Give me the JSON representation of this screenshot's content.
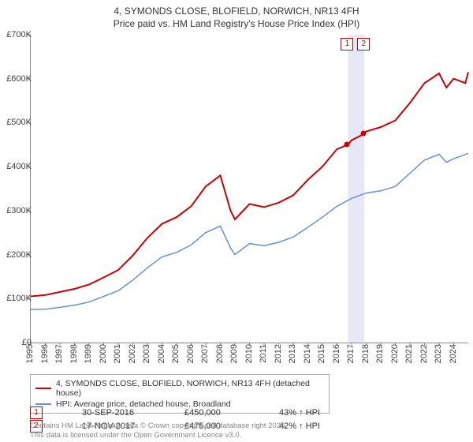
{
  "title_line1": "4, SYMONDS CLOSE, BLOFIELD, NORWICH, NR13 4FH",
  "title_line2": "Price paid vs. HM Land Registry's House Price Index (HPI)",
  "chart": {
    "type": "line",
    "background_color": "#ffffff",
    "highlight_band_color": "#e6e9f5",
    "ylim": [
      0,
      700000
    ],
    "ytick_step": 100000,
    "ytick_labels": [
      "£0",
      "£100K",
      "£200K",
      "£300K",
      "£400K",
      "£500K",
      "£600K",
      "£700K"
    ],
    "xlim": [
      1995,
      2025
    ],
    "xtick_step": 1,
    "xtick_labels": [
      "1995",
      "1996",
      "1997",
      "1998",
      "1999",
      "2000",
      "2001",
      "2002",
      "2003",
      "2004",
      "2005",
      "2006",
      "2007",
      "2008",
      "2009",
      "2010",
      "2011",
      "2012",
      "2013",
      "2014",
      "2015",
      "2016",
      "2017",
      "2018",
      "2019",
      "2020",
      "2021",
      "2022",
      "2023",
      "2024"
    ],
    "series": [
      {
        "name": "4, SYMONDS CLOSE, BLOFIELD, NORWICH, NR13 4FH (detached house)",
        "color": "#cc0000",
        "line_width": 2,
        "data": [
          [
            1995,
            105000
          ],
          [
            1996,
            108000
          ],
          [
            1997,
            115000
          ],
          [
            1998,
            122000
          ],
          [
            1999,
            132000
          ],
          [
            2000,
            148000
          ],
          [
            2001,
            165000
          ],
          [
            2002,
            198000
          ],
          [
            2003,
            238000
          ],
          [
            2004,
            270000
          ],
          [
            2005,
            285000
          ],
          [
            2006,
            310000
          ],
          [
            2007,
            355000
          ],
          [
            2008,
            380000
          ],
          [
            2008.7,
            300000
          ],
          [
            2009,
            280000
          ],
          [
            2010,
            315000
          ],
          [
            2011,
            308000
          ],
          [
            2012,
            318000
          ],
          [
            2013,
            335000
          ],
          [
            2014,
            370000
          ],
          [
            2015,
            400000
          ],
          [
            2016,
            440000
          ],
          [
            2016.75,
            450000
          ],
          [
            2017,
            460000
          ],
          [
            2017.88,
            475000
          ],
          [
            2018,
            480000
          ],
          [
            2019,
            490000
          ],
          [
            2020,
            505000
          ],
          [
            2021,
            545000
          ],
          [
            2022,
            590000
          ],
          [
            2023,
            612000
          ],
          [
            2023.5,
            580000
          ],
          [
            2024,
            600000
          ],
          [
            2024.8,
            590000
          ],
          [
            2025,
            615000
          ]
        ]
      },
      {
        "name": "HPI: Average price, detached house, Broadland",
        "color": "#6a8fd8",
        "line_width": 1.5,
        "data": [
          [
            1995,
            75000
          ],
          [
            1996,
            76000
          ],
          [
            1997,
            80000
          ],
          [
            1998,
            85000
          ],
          [
            1999,
            92000
          ],
          [
            2000,
            105000
          ],
          [
            2001,
            118000
          ],
          [
            2002,
            142000
          ],
          [
            2003,
            170000
          ],
          [
            2004,
            195000
          ],
          [
            2005,
            205000
          ],
          [
            2006,
            222000
          ],
          [
            2007,
            250000
          ],
          [
            2008,
            265000
          ],
          [
            2008.7,
            215000
          ],
          [
            2009,
            200000
          ],
          [
            2010,
            225000
          ],
          [
            2011,
            220000
          ],
          [
            2012,
            228000
          ],
          [
            2013,
            240000
          ],
          [
            2014,
            262000
          ],
          [
            2015,
            285000
          ],
          [
            2016,
            310000
          ],
          [
            2017,
            328000
          ],
          [
            2018,
            340000
          ],
          [
            2019,
            345000
          ],
          [
            2020,
            355000
          ],
          [
            2021,
            385000
          ],
          [
            2022,
            415000
          ],
          [
            2023,
            428000
          ],
          [
            2023.5,
            410000
          ],
          [
            2024,
            418000
          ],
          [
            2025,
            430000
          ]
        ]
      }
    ],
    "markers": [
      {
        "n": "1",
        "x": 2016.75,
        "y": 450000,
        "color": "#cc0000"
      },
      {
        "n": "2",
        "x": 2017.88,
        "y": 475000,
        "color": "#cc0000"
      }
    ]
  },
  "legend": {
    "items": [
      {
        "color": "#cc0000",
        "width": 2,
        "label": "4, SYMONDS CLOSE, BLOFIELD, NORWICH, NR13 4FH (detached house)"
      },
      {
        "color": "#6a8fd8",
        "width": 1.5,
        "label": "HPI: Average price, detached house, Broadland"
      }
    ]
  },
  "transactions": [
    {
      "n": "1",
      "date": "30-SEP-2016",
      "price": "£450,000",
      "delta": "43% ↑ HPI"
    },
    {
      "n": "2",
      "date": "17-NOV-2017",
      "price": "£475,000",
      "delta": "42% ↑ HPI"
    }
  ],
  "footer_line1": "Contains HM Land Registry data © Crown copyright and database right 2025.",
  "footer_line2": "This data is licensed under the Open Government Licence v3.0."
}
